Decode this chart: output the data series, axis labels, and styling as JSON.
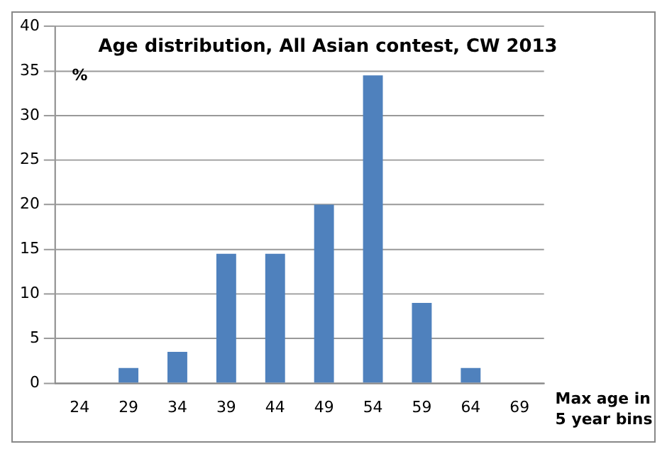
{
  "chart_data": {
    "type": "bar",
    "title": "Age distribution, All Asian contest, CW 2013",
    "ylabel": "%",
    "xlabel": "Max age in 5 year bins",
    "categories": [
      "24",
      "29",
      "34",
      "39",
      "44",
      "49",
      "54",
      "59",
      "64",
      "69"
    ],
    "values": [
      0,
      1.7,
      3.5,
      14.5,
      14.5,
      20,
      34.5,
      9,
      1.7,
      0
    ],
    "color": "#4f81bd",
    "ylim": [
      0,
      40
    ],
    "yticks": [
      0,
      5,
      10,
      15,
      20,
      25,
      30,
      35,
      40
    ],
    "grid": "y",
    "legend": false
  }
}
